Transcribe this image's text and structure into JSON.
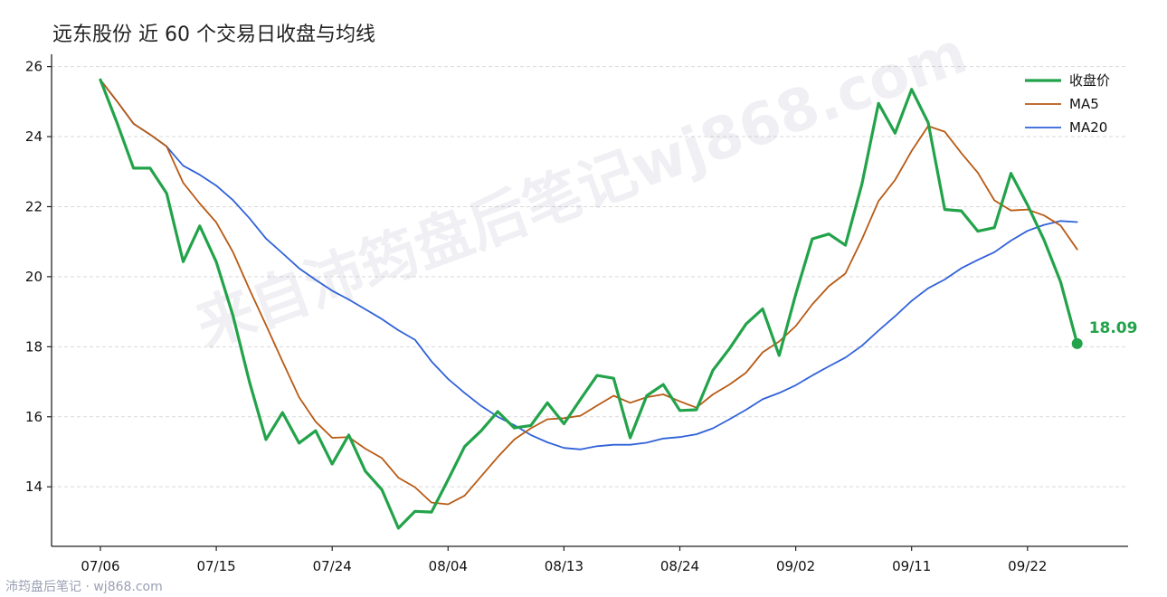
{
  "chart_data": {
    "type": "line",
    "title": "远东股份 近 60 个交易日收盘与均线",
    "xlabel": "",
    "ylabel": "",
    "ylim": [
      12.3,
      26.3
    ],
    "yticks": [
      14,
      16,
      18,
      20,
      22,
      24,
      26
    ],
    "xtick_labels": [
      "07/06",
      "07/15",
      "07/24",
      "08/04",
      "08/13",
      "08/24",
      "09/02",
      "09/11",
      "09/22"
    ],
    "xtick_indices": [
      0,
      7,
      14,
      21,
      28,
      35,
      42,
      49,
      56
    ],
    "grid": "horizontal-dashed",
    "legend_position": "top-right",
    "series": [
      {
        "name": "收盘价",
        "color": "#22a34a",
        "values": [
          25.62,
          24.4,
          23.1,
          23.1,
          22.38,
          20.43,
          21.45,
          20.42,
          18.9,
          17.0,
          15.35,
          16.12,
          15.25,
          15.6,
          14.65,
          15.48,
          14.45,
          13.92,
          12.82,
          13.3,
          13.28,
          14.2,
          15.15,
          15.6,
          16.15,
          15.68,
          15.75,
          16.4,
          15.8,
          16.5,
          17.18,
          17.1,
          15.4,
          16.6,
          16.92,
          16.18,
          16.2,
          17.33,
          17.95,
          18.65,
          19.08,
          17.75,
          19.5,
          21.08,
          21.22,
          20.9,
          22.65,
          24.95,
          24.1,
          25.35,
          24.4,
          21.92,
          21.88,
          21.3,
          21.4,
          22.95,
          22.05,
          21.05,
          19.85,
          18.09
        ],
        "last_value_label": "18.09"
      },
      {
        "name": "MA5",
        "color": "#b85a14",
        "values": [
          25.62,
          25.01,
          24.37,
          24.06,
          23.72,
          22.68,
          22.09,
          21.55,
          20.71,
          19.64,
          18.62,
          17.58,
          16.56,
          15.86,
          15.4,
          15.42,
          15.09,
          14.82,
          14.26,
          13.99,
          13.55,
          13.5,
          13.75,
          14.3,
          14.85,
          15.35,
          15.67,
          15.93,
          15.96,
          16.03,
          16.32,
          16.6,
          16.4,
          16.56,
          16.64,
          16.44,
          16.26,
          16.64,
          16.92,
          17.26,
          17.84,
          18.15,
          18.59,
          19.21,
          19.73,
          20.09,
          21.07,
          22.16,
          22.76,
          23.59,
          24.3,
          24.14,
          23.53,
          22.97,
          22.18,
          21.89,
          21.92,
          21.75,
          21.46,
          20.78
        ]
      },
      {
        "name": "MA20",
        "color": "#2f62d8",
        "values": [
          25.62,
          25.01,
          24.37,
          24.06,
          23.72,
          23.17,
          22.91,
          22.6,
          22.19,
          21.67,
          21.09,
          20.67,
          20.24,
          19.91,
          19.6,
          19.35,
          19.07,
          18.79,
          18.47,
          18.2,
          17.58,
          17.08,
          16.68,
          16.31,
          16.0,
          15.76,
          15.48,
          15.27,
          15.11,
          15.07,
          15.16,
          15.2,
          15.2,
          15.26,
          15.38,
          15.42,
          15.5,
          15.67,
          15.93,
          16.2,
          16.5,
          16.68,
          16.9,
          17.18,
          17.44,
          17.69,
          18.03,
          18.46,
          18.87,
          19.31,
          19.67,
          19.92,
          20.24,
          20.48,
          20.7,
          21.03,
          21.31,
          21.48,
          21.59,
          21.56
        ]
      }
    ]
  },
  "watermark": "来自沛筠盘后笔记wj868.com",
  "footer": "沛筠盘后笔记 · wj868.com"
}
